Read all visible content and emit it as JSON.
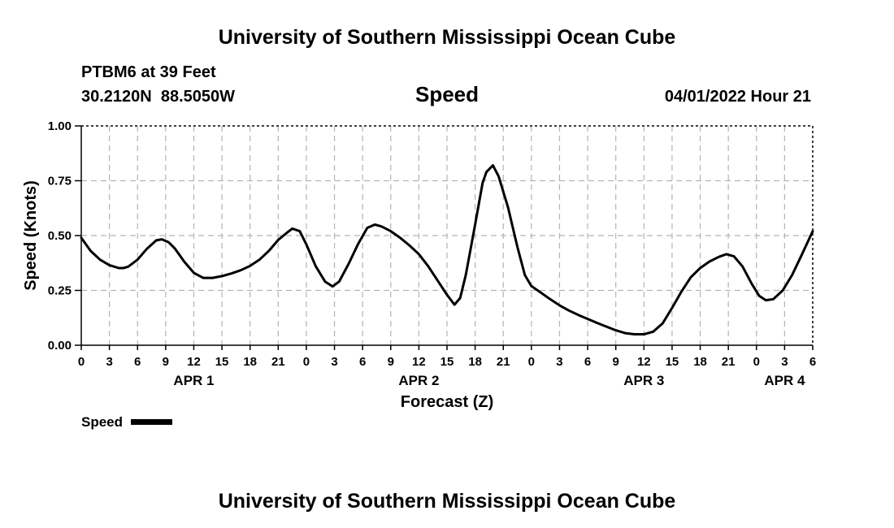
{
  "header": {
    "title": "University of Southern Mississippi Ocean Cube",
    "station": "PTBM6 at 39 Feet",
    "coordinates": "30.2120N  88.5050W",
    "variable": "Speed",
    "issued": "04/01/2022 Hour 21"
  },
  "footer": {
    "title": "University of Southern Mississippi Ocean Cube"
  },
  "legend": {
    "label": "Speed",
    "color": "#000000"
  },
  "chart_data": {
    "type": "line",
    "title": "Speed",
    "xlabel": "Forecast (Z)",
    "ylabel": "Speed (Knots)",
    "x_unit": "hours from APR 1 00Z",
    "xlim": [
      0,
      78
    ],
    "ylim": [
      0,
      1.0
    ],
    "y_ticks": [
      {
        "value": 0.0,
        "label": "0.00"
      },
      {
        "value": 0.25,
        "label": "0.25"
      },
      {
        "value": 0.5,
        "label": "0.50"
      },
      {
        "value": 0.75,
        "label": "0.75"
      },
      {
        "value": 1.0,
        "label": "1.00"
      }
    ],
    "x_ticks": [
      {
        "value": 0,
        "label": "0"
      },
      {
        "value": 3,
        "label": "3"
      },
      {
        "value": 6,
        "label": "6"
      },
      {
        "value": 9,
        "label": "9"
      },
      {
        "value": 12,
        "label": "12"
      },
      {
        "value": 15,
        "label": "15"
      },
      {
        "value": 18,
        "label": "18"
      },
      {
        "value": 21,
        "label": "21"
      },
      {
        "value": 24,
        "label": "0"
      },
      {
        "value": 27,
        "label": "3"
      },
      {
        "value": 30,
        "label": "6"
      },
      {
        "value": 33,
        "label": "9"
      },
      {
        "value": 36,
        "label": "12"
      },
      {
        "value": 39,
        "label": "15"
      },
      {
        "value": 42,
        "label": "18"
      },
      {
        "value": 45,
        "label": "21"
      },
      {
        "value": 48,
        "label": "0"
      },
      {
        "value": 51,
        "label": "3"
      },
      {
        "value": 54,
        "label": "6"
      },
      {
        "value": 57,
        "label": "9"
      },
      {
        "value": 60,
        "label": "12"
      },
      {
        "value": 63,
        "label": "15"
      },
      {
        "value": 66,
        "label": "18"
      },
      {
        "value": 69,
        "label": "21"
      },
      {
        "value": 72,
        "label": "0"
      },
      {
        "value": 75,
        "label": "3"
      },
      {
        "value": 78,
        "label": "6"
      }
    ],
    "day_labels": [
      {
        "value": 12,
        "label": "APR 1"
      },
      {
        "value": 36,
        "label": "APR 2"
      },
      {
        "value": 60,
        "label": "APR 3"
      },
      {
        "value": 75,
        "label": "APR 4"
      }
    ],
    "grid": true,
    "series": [
      {
        "name": "Speed",
        "color": "#000000",
        "points": [
          [
            0,
            0.49
          ],
          [
            1,
            0.43
          ],
          [
            2,
            0.39
          ],
          [
            3,
            0.365
          ],
          [
            4,
            0.352
          ],
          [
            4.5,
            0.352
          ],
          [
            5,
            0.358
          ],
          [
            6,
            0.39
          ],
          [
            7,
            0.44
          ],
          [
            8,
            0.478
          ],
          [
            8.6,
            0.483
          ],
          [
            9.3,
            0.47
          ],
          [
            10,
            0.44
          ],
          [
            11,
            0.38
          ],
          [
            12,
            0.33
          ],
          [
            13,
            0.307
          ],
          [
            14,
            0.307
          ],
          [
            15,
            0.315
          ],
          [
            16,
            0.327
          ],
          [
            17,
            0.342
          ],
          [
            18,
            0.362
          ],
          [
            19,
            0.39
          ],
          [
            20,
            0.43
          ],
          [
            21,
            0.48
          ],
          [
            22,
            0.515
          ],
          [
            22.5,
            0.532
          ],
          [
            23.3,
            0.52
          ],
          [
            24,
            0.46
          ],
          [
            25,
            0.36
          ],
          [
            26,
            0.29
          ],
          [
            26.8,
            0.268
          ],
          [
            27.5,
            0.29
          ],
          [
            28.5,
            0.37
          ],
          [
            29.5,
            0.46
          ],
          [
            30.5,
            0.535
          ],
          [
            31.3,
            0.55
          ],
          [
            32,
            0.542
          ],
          [
            33,
            0.52
          ],
          [
            34,
            0.49
          ],
          [
            35,
            0.455
          ],
          [
            36,
            0.415
          ],
          [
            37,
            0.36
          ],
          [
            38,
            0.295
          ],
          [
            39,
            0.23
          ],
          [
            39.8,
            0.185
          ],
          [
            40.4,
            0.215
          ],
          [
            41,
            0.32
          ],
          [
            42,
            0.55
          ],
          [
            42.8,
            0.74
          ],
          [
            43.2,
            0.79
          ],
          [
            43.9,
            0.82
          ],
          [
            44.5,
            0.77
          ],
          [
            45.5,
            0.63
          ],
          [
            46.5,
            0.45
          ],
          [
            47.3,
            0.32
          ],
          [
            48,
            0.27
          ],
          [
            49,
            0.24
          ],
          [
            50,
            0.21
          ],
          [
            51,
            0.182
          ],
          [
            52,
            0.158
          ],
          [
            53,
            0.138
          ],
          [
            54,
            0.12
          ],
          [
            55,
            0.102
          ],
          [
            56,
            0.085
          ],
          [
            57,
            0.068
          ],
          [
            58,
            0.055
          ],
          [
            59,
            0.05
          ],
          [
            60,
            0.05
          ],
          [
            61,
            0.062
          ],
          [
            62,
            0.1
          ],
          [
            63,
            0.17
          ],
          [
            64,
            0.245
          ],
          [
            65,
            0.31
          ],
          [
            66,
            0.352
          ],
          [
            67,
            0.382
          ],
          [
            68,
            0.403
          ],
          [
            68.8,
            0.415
          ],
          [
            69.6,
            0.405
          ],
          [
            70.5,
            0.36
          ],
          [
            71.5,
            0.28
          ],
          [
            72.3,
            0.225
          ],
          [
            73,
            0.205
          ],
          [
            73.8,
            0.21
          ],
          [
            74.8,
            0.25
          ],
          [
            75.8,
            0.32
          ],
          [
            76.8,
            0.41
          ],
          [
            78,
            0.52
          ]
        ]
      }
    ]
  }
}
